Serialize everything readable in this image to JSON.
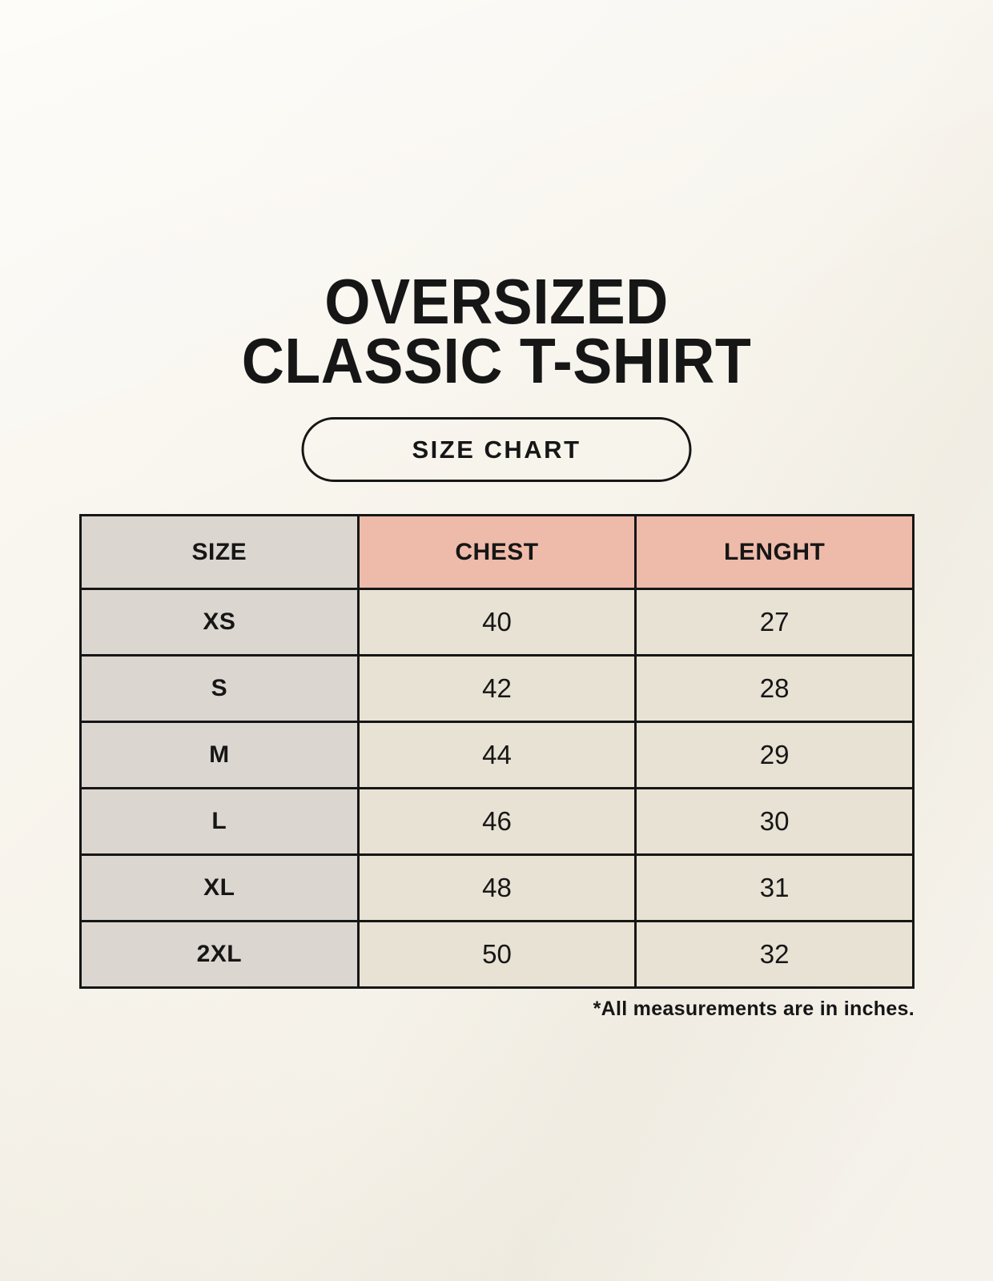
{
  "title": {
    "line1": "OVERSIZED",
    "line2": "CLASSIC T-SHIRT"
  },
  "badge": {
    "label": "SIZE CHART"
  },
  "table": {
    "columns": [
      "SIZE",
      "CHEST",
      "LENGHT"
    ],
    "rows": [
      {
        "size": "XS",
        "chest": "40",
        "length": "27"
      },
      {
        "size": "S",
        "chest": "42",
        "length": "28"
      },
      {
        "size": "M",
        "chest": "44",
        "length": "29"
      },
      {
        "size": "L",
        "chest": "46",
        "length": "30"
      },
      {
        "size": "XL",
        "chest": "48",
        "length": "31"
      },
      {
        "size": "2XL",
        "chest": "50",
        "length": "32"
      }
    ]
  },
  "footnote": "*All measurements are in inches.",
  "colors": {
    "background": "#f6f3eb",
    "header_accent": "#eebbaa",
    "size_column": "#dcd6d0",
    "data_cell": "#e8e2d4",
    "border": "#161616",
    "text": "#161616"
  }
}
